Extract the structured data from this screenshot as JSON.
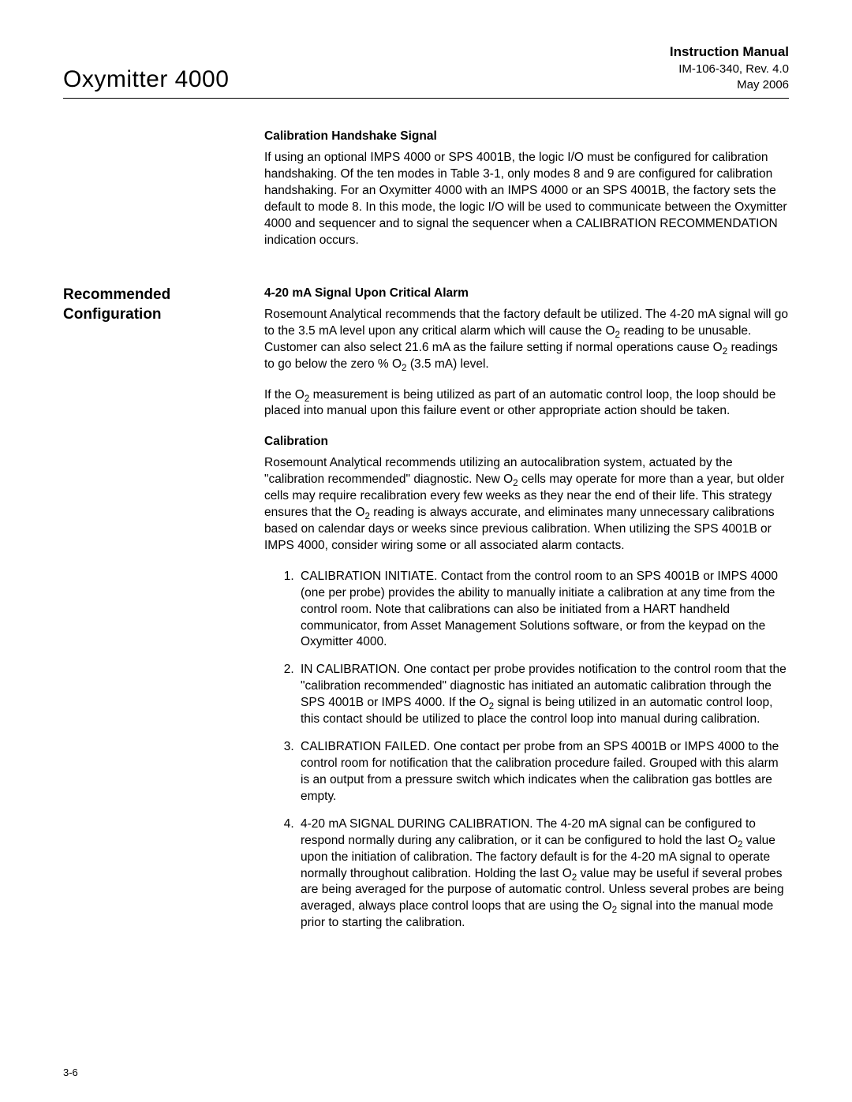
{
  "header": {
    "product_title": "Oxymitter 4000",
    "manual_label": "Instruction Manual",
    "doc_number": "IM-106-340, Rev. 4.0",
    "date": "May 2006"
  },
  "section1": {
    "heading": "Calibration Handshake Signal",
    "para1": "If using an optional IMPS 4000 or SPS 4001B, the logic I/O must be configured for calibration handshaking. Of the ten modes in Table 3-1, only modes 8 and 9 are configured for calibration handshaking. For an Oxymitter 4000 with an IMPS 4000 or an SPS 4001B, the factory sets the default to mode 8. In this mode, the logic I/O will be used to communicate between the Oxymitter 4000 and sequencer and to signal the sequencer when a CALIBRATION RECOMMENDATION indication occurs."
  },
  "side_heading": {
    "line1": "Recommended",
    "line2": "Configuration"
  },
  "section2": {
    "heading": "4-20 mA Signal Upon Critical Alarm",
    "para1_html": "Rosemount Analytical recommends that the factory default be utilized. The 4-20 mA signal will go to the 3.5 mA level upon any critical alarm which will cause the O<sub>2</sub> reading to be unusable. Customer can also select 21.6 mA as the failure setting if normal operations cause O<sub>2</sub> readings to go below the zero % O<sub>2</sub> (3.5 mA) level.",
    "para2_html": "If the O<sub>2</sub> measurement is being utilized as part of an automatic control loop, the loop should be placed into manual upon this failure event or other appropriate action should be taken."
  },
  "section3": {
    "heading": "Calibration",
    "para1_html": "Rosemount Analytical recommends utilizing an autocalibration system, actuated by the \"calibration recommended\" diagnostic. New O<sub>2</sub> cells may operate for more than a year, but older cells may require recalibration every few weeks as they near the end of their life. This strategy ensures that the O<sub>2</sub> reading is always accurate, and eliminates many unnecessary calibrations based on calendar days or weeks since previous calibration. When utilizing the SPS 4001B or IMPS 4000, consider wiring some or all associated alarm contacts.",
    "items": [
      "CALIBRATION INITIATE. Contact from the control room to an SPS 4001B or IMPS 4000 (one per probe) provides the ability to manually initiate a calibration at any time from the control room. Note that calibrations can also be initiated from a HART handheld communicator, from Asset Management Solutions software, or from the keypad on the Oxymitter 4000.",
      "IN CALIBRATION. One contact per probe provides notification to the control room that the \"calibration recommended\" diagnostic has initiated an automatic calibration through the SPS 4001B or IMPS 4000. If the O<sub>2</sub> signal is being utilized in an automatic control loop, this contact should be utilized to place the control loop into manual during calibration.",
      "CALIBRATION FAILED. One contact per probe from an SPS 4001B or IMPS 4000 to the control room for notification that the calibration procedure failed. Grouped with this alarm is an output from a pressure switch which indicates when the calibration gas bottles are empty.",
      "4-20 mA SIGNAL DURING CALIBRATION. The 4-20 mA signal can be configured to respond normally during any calibration, or it can be configured to hold the last O<sub>2</sub> value upon the initiation of calibration. The factory default is for the 4-20 mA signal to operate normally throughout calibration. Holding the last O<sub>2</sub> value may be useful if several probes are being averaged for the purpose of automatic control. Unless several probes are being averaged, always place control loops that are using the O<sub>2</sub> signal into the manual mode prior to starting the calibration."
    ]
  },
  "page_number": "3-6"
}
